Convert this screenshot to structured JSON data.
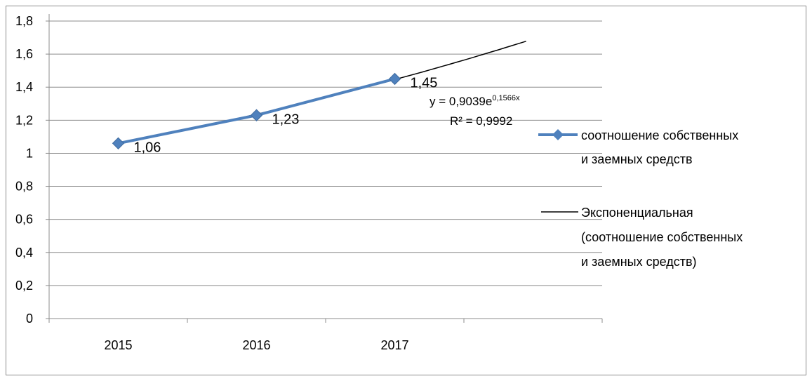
{
  "chart_data": {
    "type": "line",
    "categories": [
      "2015",
      "2016",
      "2017"
    ],
    "ylim": [
      0,
      1.8
    ],
    "yticks": [
      "0",
      "0,2",
      "0,4",
      "0,6",
      "0,8",
      "1",
      "1,2",
      "1,4",
      "1,6",
      "1,8"
    ],
    "grid": true,
    "legend_position": "right",
    "series": [
      {
        "name": "соотношение собственных и заемных средств",
        "legend_lines": [
          "соотношение собственных",
          "и заемных средств"
        ],
        "values": [
          1.06,
          1.23,
          1.45
        ],
        "data_labels": [
          "1,06",
          "1,23",
          "1,45"
        ],
        "color": "#4f81bd",
        "marker": "diamond"
      }
    ],
    "trendline": {
      "name": "Экспоненциальная (соотношение собственных и заемных средств)",
      "legend_lines": [
        "Экспоненциальная",
        "(соотношение собственных",
        "и заемных средств)"
      ],
      "type": "exponential",
      "a": 0.9039,
      "b": 0.1566,
      "forward_periods": 1,
      "color": "#000000",
      "equation_base": "y = 0,9039e",
      "equation_exp": "0,1566x",
      "r2_text": "R² = 0,9992"
    }
  }
}
